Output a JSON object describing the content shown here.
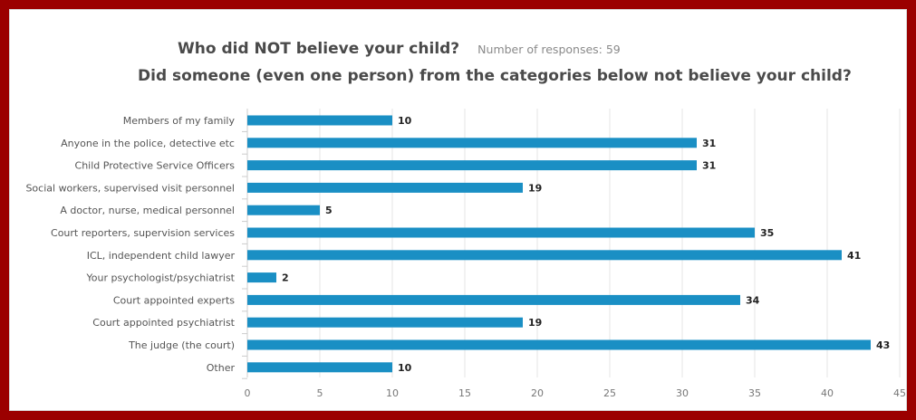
{
  "header": {
    "title": "Who did NOT believe your child?",
    "responses": "Number of responses: 59",
    "subtitle": "Did someone (even one person) from the categories below not believe your child?"
  },
  "colors": {
    "bar": "#1a8fc4",
    "frame": "#9b0000",
    "grid": "#e6e6e6"
  },
  "chart_data": {
    "type": "bar",
    "orientation": "horizontal",
    "categories": [
      "Members of my family",
      "Anyone in the police, detective etc",
      "Child Protective Service Officers",
      "Social workers, supervised visit personnel",
      "A doctor, nurse, medical personnel",
      "Court reporters, supervision services",
      "ICL, independent child lawyer",
      "Your psychologist/psychiatrist",
      "Court appointed experts",
      "Court appointed psychiatrist",
      "The judge (the court)",
      "Other"
    ],
    "values": [
      10,
      31,
      31,
      19,
      5,
      35,
      41,
      2,
      34,
      19,
      43,
      10
    ],
    "xlim": [
      0,
      45
    ],
    "xticks": [
      0,
      5,
      10,
      15,
      20,
      25,
      30,
      35,
      40,
      45
    ],
    "grid": true,
    "data_labels": true
  }
}
